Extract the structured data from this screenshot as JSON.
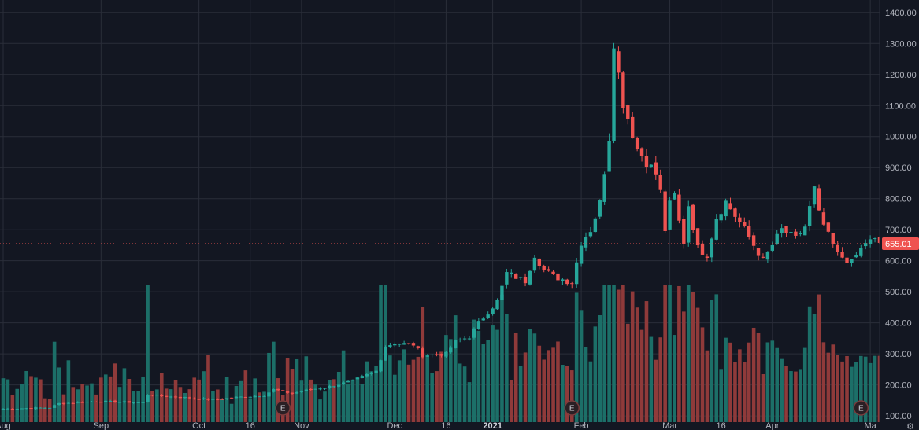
{
  "chart_data": {
    "type": "candlestick",
    "price_axis": {
      "ylim": [
        80,
        1440
      ],
      "ticks": [
        "1400.00",
        "1300.00",
        "1200.00",
        "1100.00",
        "1000.00",
        "900.00",
        "800.00",
        "700.00",
        "600.00",
        "500.00",
        "400.00",
        "300.00",
        "200.00",
        "100.00"
      ],
      "tick_values": [
        1400,
        1300,
        1200,
        1100,
        1000,
        900,
        800,
        700,
        600,
        500,
        400,
        300,
        200,
        100
      ]
    },
    "time_axis": {
      "labels": [
        {
          "text": "Aug",
          "index": 0
        },
        {
          "text": "Sep",
          "index": 21
        },
        {
          "text": "Oct",
          "index": 42
        },
        {
          "text": "16",
          "index": 53
        },
        {
          "text": "Nov",
          "index": 64
        },
        {
          "text": "Dec",
          "index": 84
        },
        {
          "text": "16",
          "index": 95
        },
        {
          "text": "2021",
          "index": 105,
          "bold": true
        },
        {
          "text": "Feb",
          "index": 124
        },
        {
          "text": "Mar",
          "index": 143
        },
        {
          "text": "16",
          "index": 154
        },
        {
          "text": "Apr",
          "index": 165
        },
        {
          "text": "Ma",
          "index": 186
        }
      ]
    },
    "last_price": {
      "label": "655.01",
      "value": 655.01
    },
    "earnings_markers": [
      {
        "label": "E",
        "index": 60
      },
      {
        "label": "E",
        "index": 122
      },
      {
        "label": "E",
        "index": 184
      }
    ],
    "colors": {
      "up": "#26a69a",
      "down": "#ef5350",
      "up_volume": "#1c6f68",
      "down_volume": "#8f3a3a",
      "background": "#131722",
      "grid": "#2a2e39",
      "price_line": "#ef5350"
    },
    "anchors": [
      [
        0,
        123
      ],
      [
        10,
        127
      ],
      [
        12,
        140
      ],
      [
        20,
        147
      ],
      [
        25,
        145
      ],
      [
        30,
        143
      ],
      [
        31,
        170
      ],
      [
        33,
        165
      ],
      [
        40,
        158
      ],
      [
        45,
        152
      ],
      [
        50,
        160
      ],
      [
        56,
        167
      ],
      [
        58,
        185
      ],
      [
        62,
        172
      ],
      [
        64,
        180
      ],
      [
        70,
        195
      ],
      [
        75,
        213
      ],
      [
        80,
        245
      ],
      [
        82,
        325
      ],
      [
        84,
        335
      ],
      [
        88,
        330
      ],
      [
        90,
        295
      ],
      [
        95,
        300
      ],
      [
        97,
        340
      ],
      [
        100,
        355
      ],
      [
        102,
        400
      ],
      [
        106,
        470
      ],
      [
        108,
        560
      ],
      [
        112,
        535
      ],
      [
        114,
        620
      ],
      [
        116,
        570
      ],
      [
        118,
        550
      ],
      [
        120,
        540
      ],
      [
        122,
        530
      ],
      [
        124,
        660
      ],
      [
        126,
        700
      ],
      [
        128,
        785
      ],
      [
        130,
        1000
      ],
      [
        131,
        1310
      ],
      [
        132,
        1200
      ],
      [
        133,
        1110
      ],
      [
        134,
        1060
      ],
      [
        136,
        960
      ],
      [
        138,
        920
      ],
      [
        140,
        880
      ],
      [
        141,
        820
      ],
      [
        142,
        700
      ],
      [
        143,
        780
      ],
      [
        144,
        810
      ],
      [
        145,
        725
      ],
      [
        146,
        660
      ],
      [
        147,
        780
      ],
      [
        149,
        640
      ],
      [
        151,
        620
      ],
      [
        153,
        740
      ],
      [
        155,
        790
      ],
      [
        157,
        745
      ],
      [
        159,
        700
      ],
      [
        161,
        650
      ],
      [
        163,
        600
      ],
      [
        165,
        650
      ],
      [
        167,
        700
      ],
      [
        170,
        670
      ],
      [
        172,
        710
      ],
      [
        174,
        830
      ],
      [
        175,
        750
      ],
      [
        177,
        680
      ],
      [
        179,
        620
      ],
      [
        182,
        595
      ],
      [
        185,
        660
      ],
      [
        187,
        665
      ],
      [
        189,
        650
      ]
    ],
    "volume_axis_max": 520
  }
}
